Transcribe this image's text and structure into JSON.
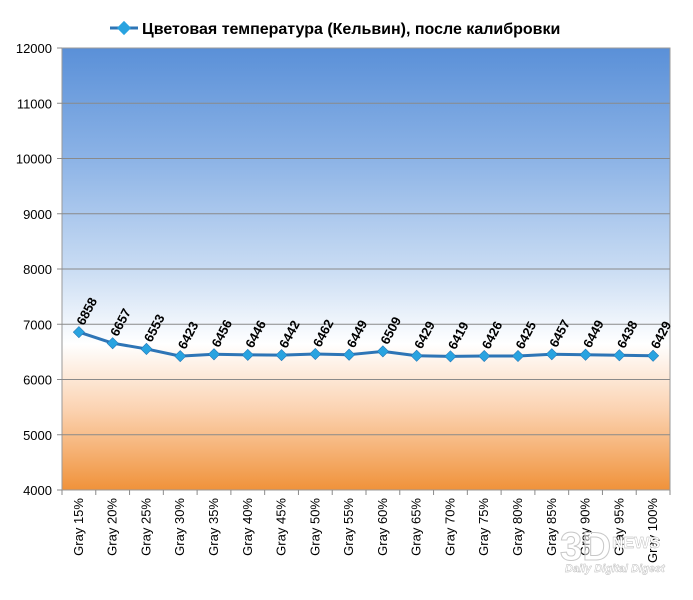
{
  "chart_data": {
    "type": "line",
    "title": "",
    "xlabel": "",
    "ylabel": "",
    "ylim": [
      4000,
      12000
    ],
    "y_ticks": [
      4000,
      5000,
      6000,
      7000,
      8000,
      9000,
      10000,
      11000,
      12000
    ],
    "grid": "horizontal",
    "legend_position": "top",
    "categories": [
      "Gray 15%",
      "Gray 20%",
      "Gray 25%",
      "Gray 30%",
      "Gray 35%",
      "Gray 40%",
      "Gray 45%",
      "Gray 50%",
      "Gray 55%",
      "Gray 60%",
      "Gray 65%",
      "Gray 70%",
      "Gray 75%",
      "Gray 80%",
      "Gray 85%",
      "Gray 90%",
      "Gray 95%",
      "Gray 100%"
    ],
    "series": [
      {
        "name": "Цветовая температура (Кельвин), после калибровки",
        "color": "#2e75b6",
        "marker_color": "#29a3e0",
        "values": [
          6858,
          6657,
          6553,
          6423,
          6456,
          6446,
          6442,
          6462,
          6449,
          6509,
          6429,
          6419,
          6426,
          6425,
          6457,
          6449,
          6438,
          6429
        ]
      }
    ],
    "background": {
      "top_color": "#5a90d8",
      "reference_value": 6500,
      "bottom_color": "#f0923a"
    }
  },
  "watermark": {
    "text": "3D",
    "subtext_top": "NEWS",
    "subtext_bottom": "Daily Digital Digest"
  }
}
